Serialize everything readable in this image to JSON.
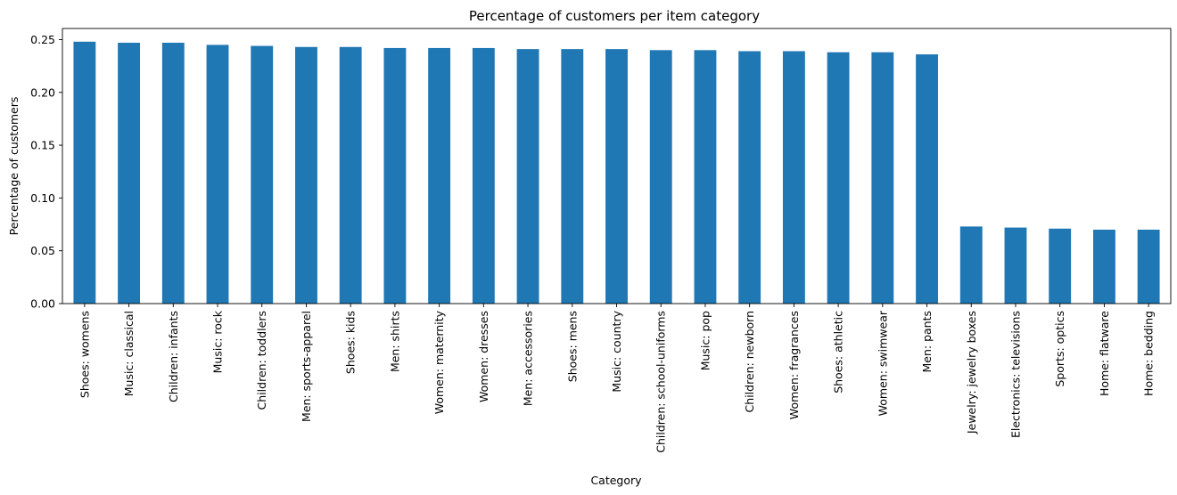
{
  "chart_data": {
    "type": "bar",
    "title": "Percentage of customers per item category",
    "xlabel": "Category",
    "ylabel": "Percentage of customers",
    "ylim": [
      0,
      0.2605
    ],
    "yticks": [
      "0.00",
      "0.05",
      "0.10",
      "0.15",
      "0.20",
      "0.25"
    ],
    "grid": false,
    "bar_color": "#1f77b4",
    "categories": [
      "Shoes: womens",
      "Music: classical",
      "Children: infants",
      "Music: rock",
      "Children: toddlers",
      "Men: sports-apparel",
      "Shoes: kids",
      "Men: shirts",
      "Women: maternity",
      "Women: dresses",
      "Men: accessories",
      "Shoes: mens",
      "Music: country",
      "Children: school-uniforms",
      "Music: pop",
      "Children: newborn",
      "Women: fragrances",
      "Shoes: athletic",
      "Women: swimwear",
      "Men: pants",
      "Jewelry: jewelry boxes",
      "Electronics: televisions",
      "Sports: optics",
      "Home: flatware",
      "Home: bedding"
    ],
    "values": [
      0.248,
      0.247,
      0.247,
      0.245,
      0.244,
      0.243,
      0.243,
      0.242,
      0.242,
      0.242,
      0.241,
      0.241,
      0.241,
      0.24,
      0.24,
      0.239,
      0.239,
      0.238,
      0.238,
      0.236,
      0.073,
      0.072,
      0.071,
      0.07,
      0.07
    ]
  }
}
